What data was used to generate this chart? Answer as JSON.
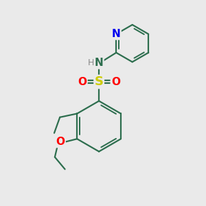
{
  "background_color": "#eaeaea",
  "bond_color": "#2d6e4e",
  "bond_width": 1.6,
  "atom_colors": {
    "N": "#0000ee",
    "S": "#cccc00",
    "O": "#ff0000",
    "H": "#888888",
    "C": "#2d6e4e"
  },
  "figsize": [
    3.0,
    3.0
  ],
  "dpi": 100
}
